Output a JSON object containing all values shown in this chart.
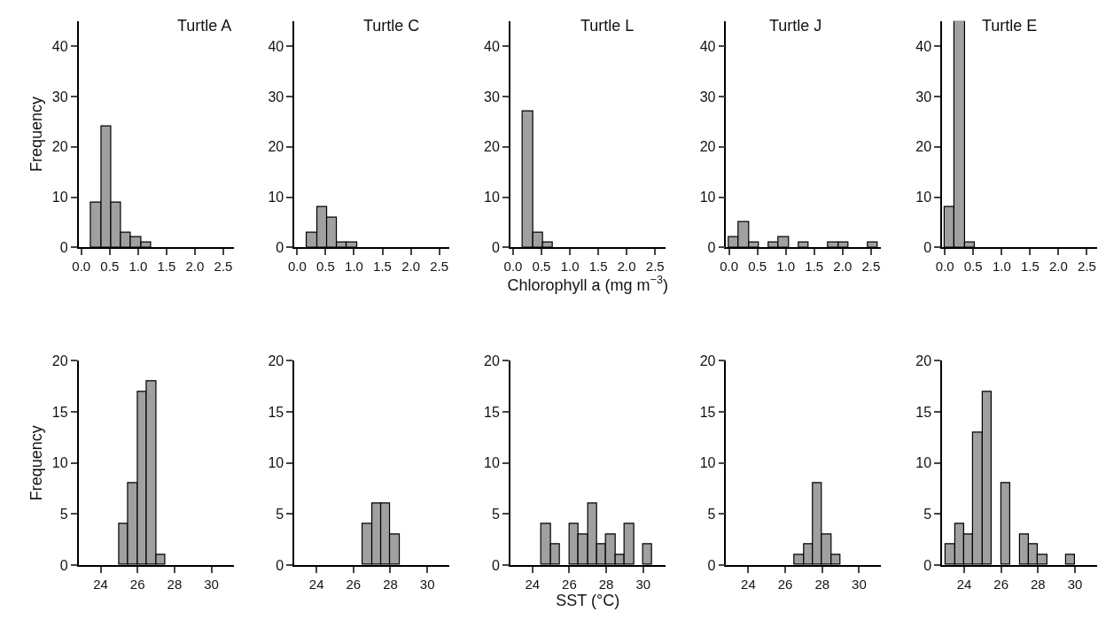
{
  "chart_data": [
    {
      "type": "histogram",
      "title": "Turtle A",
      "ylabel": "Frequency",
      "color": "#a0a0a0",
      "bins": [
        0,
        0.175,
        0.35,
        0.525,
        0.7,
        0.875,
        1.05,
        1.225,
        1.4,
        1.575,
        1.75,
        1.925,
        2.1,
        2.275,
        2.45,
        2.625
      ],
      "values": [
        0,
        9,
        24,
        9,
        3,
        2,
        1,
        0,
        0,
        0,
        0,
        0,
        0,
        0,
        0
      ],
      "xlim": [
        -0.05,
        2.68
      ],
      "xticks": [
        {
          "value": 0,
          "label": "0.0"
        },
        0.5,
        {
          "value": 1,
          "label": "1.0"
        },
        1.5,
        {
          "value": 2,
          "label": "2.0"
        },
        2.5
      ],
      "ylim": [
        0,
        45
      ],
      "yticks": [
        0,
        10,
        20,
        30,
        40
      ]
    },
    {
      "type": "histogram",
      "title": "Turtle C",
      "color": "#a0a0a0",
      "bins": [
        0,
        0.175,
        0.35,
        0.525,
        0.7,
        0.875,
        1.05,
        1.225,
        1.4,
        1.575,
        1.75,
        1.925,
        2.1,
        2.275,
        2.45,
        2.625
      ],
      "values": [
        0,
        3,
        8,
        6,
        1,
        1,
        0,
        0,
        0,
        0,
        0,
        0,
        0,
        0,
        0
      ],
      "xlim": [
        -0.05,
        2.68
      ],
      "xticks": [
        {
          "value": 0,
          "label": "0.0"
        },
        0.5,
        {
          "value": 1,
          "label": "1.0"
        },
        1.5,
        {
          "value": 2,
          "label": "2.0"
        },
        2.5
      ],
      "ylim": [
        0,
        45
      ],
      "yticks": [
        0,
        10,
        20,
        30,
        40
      ]
    },
    {
      "type": "histogram",
      "title": "Turtle L",
      "xlabel": "Chlorophyll a (mg m$^{−3}$)",
      "color": "#a0a0a0",
      "bins": [
        0,
        0.175,
        0.35,
        0.525,
        0.7,
        0.875,
        1.05,
        1.225,
        1.4,
        1.575,
        1.75,
        1.925,
        2.1,
        2.275,
        2.45,
        2.625
      ],
      "values": [
        0,
        27,
        3,
        1,
        0,
        0,
        0,
        0,
        0,
        0,
        0,
        0,
        0,
        0,
        0
      ],
      "xlim": [
        -0.05,
        2.68
      ],
      "xticks": [
        {
          "value": 0,
          "label": "0.0"
        },
        0.5,
        {
          "value": 1,
          "label": "1.0"
        },
        1.5,
        {
          "value": 2,
          "label": "2.0"
        },
        2.5
      ],
      "ylim": [
        0,
        45
      ],
      "yticks": [
        0,
        10,
        20,
        30,
        40
      ]
    },
    {
      "type": "histogram",
      "title": "Turtle J",
      "color": "#a0a0a0",
      "bins": [
        0,
        0.175,
        0.35,
        0.525,
        0.7,
        0.875,
        1.05,
        1.225,
        1.4,
        1.575,
        1.75,
        1.925,
        2.1,
        2.275,
        2.45,
        2.625
      ],
      "values": [
        2,
        5,
        1,
        0,
        1,
        2,
        0,
        1,
        0,
        0,
        1,
        1,
        0,
        0,
        1
      ],
      "xlim": [
        -0.05,
        2.68
      ],
      "xticks": [
        {
          "value": 0,
          "label": "0.0"
        },
        0.5,
        {
          "value": 1,
          "label": "1.0"
        },
        1.5,
        {
          "value": 2,
          "label": "2.0"
        },
        2.5
      ],
      "ylim": [
        0,
        45
      ],
      "yticks": [
        0,
        10,
        20,
        30,
        40
      ]
    },
    {
      "type": "histogram",
      "title": "Turtle E",
      "color": "#a0a0a0",
      "bins": [
        0,
        0.175,
        0.35,
        0.525,
        0.7,
        0.875,
        1.05,
        1.225,
        1.4,
        1.575,
        1.75,
        1.925,
        2.1,
        2.275,
        2.45,
        2.625
      ],
      "values": [
        8,
        45,
        1,
        0,
        0,
        0,
        0,
        0,
        0,
        0,
        0,
        0,
        0,
        0,
        0
      ],
      "xlim": [
        -0.05,
        2.68
      ],
      "xticks": [
        {
          "value": 0,
          "label": "0.0"
        },
        0.5,
        {
          "value": 1,
          "label": "1.0"
        },
        1.5,
        {
          "value": 2,
          "label": "2.0"
        },
        2.5
      ],
      "ylim": [
        0,
        45
      ],
      "yticks": [
        0,
        10,
        20,
        30,
        40
      ]
    },
    {
      "type": "histogram",
      "ylabel": "Frequency",
      "color": "#a0a0a0",
      "bins": [
        23,
        23.5,
        24,
        24.5,
        25,
        25.5,
        26,
        26.5,
        27,
        27.5,
        28,
        28.5,
        29,
        29.5,
        30,
        30.5,
        31
      ],
      "values": [
        0,
        0,
        0,
        0,
        4,
        8,
        17,
        18,
        1,
        0,
        0,
        0,
        0,
        0,
        0,
        0
      ],
      "xlim": [
        22.8,
        31.2
      ],
      "xticks": [
        24,
        26,
        28,
        30
      ],
      "ylim": [
        0,
        20
      ],
      "yticks": [
        0,
        5,
        10,
        15,
        20
      ]
    },
    {
      "type": "histogram",
      "color": "#a0a0a0",
      "bins": [
        23,
        23.5,
        24,
        24.5,
        25,
        25.5,
        26,
        26.5,
        27,
        27.5,
        28,
        28.5,
        29,
        29.5,
        30,
        30.5,
        31
      ],
      "values": [
        0,
        0,
        0,
        0,
        0,
        0,
        0,
        4,
        6,
        6,
        3,
        0,
        0,
        0,
        0,
        0
      ],
      "xlim": [
        22.8,
        31.2
      ],
      "xticks": [
        24,
        26,
        28,
        30
      ],
      "ylim": [
        0,
        20
      ],
      "yticks": [
        0,
        5,
        10,
        15,
        20
      ]
    },
    {
      "type": "histogram",
      "xlabel": "SST (°C)",
      "color": "#a0a0a0",
      "bins": [
        23,
        23.5,
        24,
        24.5,
        25,
        25.5,
        26,
        26.5,
        27,
        27.5,
        28,
        28.5,
        29,
        29.5,
        30,
        30.5,
        31
      ],
      "values": [
        0,
        0,
        0,
        4,
        2,
        0,
        4,
        3,
        6,
        2,
        3,
        1,
        4,
        0,
        2,
        0
      ],
      "xlim": [
        22.8,
        31.2
      ],
      "xticks": [
        24,
        26,
        28,
        30
      ],
      "ylim": [
        0,
        20
      ],
      "yticks": [
        0,
        5,
        10,
        15,
        20
      ]
    },
    {
      "type": "histogram",
      "color": "#a0a0a0",
      "bins": [
        23,
        23.5,
        24,
        24.5,
        25,
        25.5,
        26,
        26.5,
        27,
        27.5,
        28,
        28.5,
        29,
        29.5,
        30,
        30.5,
        31
      ],
      "values": [
        0,
        0,
        0,
        0,
        0,
        0,
        0,
        1,
        2,
        8,
        3,
        1,
        0,
        0,
        0,
        0
      ],
      "xlim": [
        22.8,
        31.2
      ],
      "xticks": [
        24,
        26,
        28,
        30
      ],
      "ylim": [
        0,
        20
      ],
      "yticks": [
        0,
        5,
        10,
        15,
        20
      ]
    },
    {
      "type": "histogram",
      "color": "#a0a0a0",
      "bins": [
        23,
        23.5,
        24,
        24.5,
        25,
        25.5,
        26,
        26.5,
        27,
        27.5,
        28,
        28.5,
        29,
        29.5,
        30,
        30.5,
        31
      ],
      "values": [
        2,
        4,
        3,
        13,
        17,
        0,
        8,
        0,
        3,
        2,
        1,
        0,
        0,
        1,
        0,
        0
      ],
      "xlim": [
        22.8,
        31.2
      ],
      "xticks": [
        24,
        26,
        28,
        30
      ],
      "ylim": [
        0,
        20
      ],
      "yticks": [
        0,
        5,
        10,
        15,
        20
      ]
    }
  ]
}
